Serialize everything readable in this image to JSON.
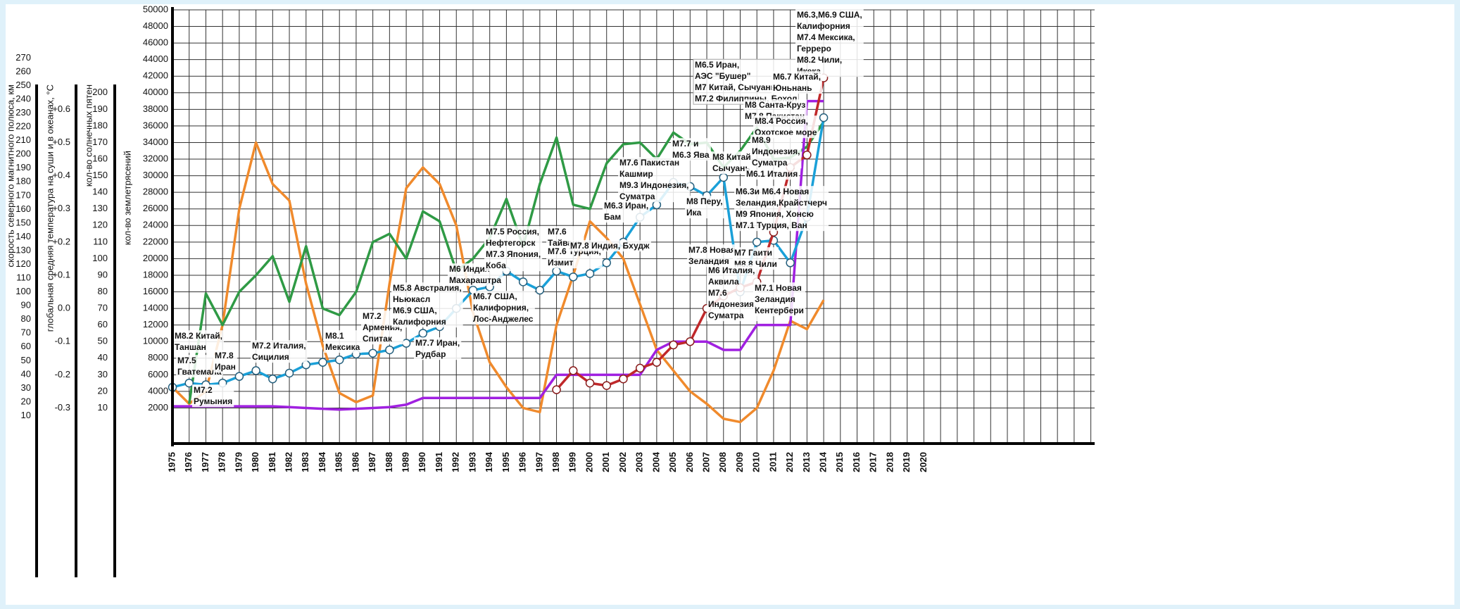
{
  "chart_data": {
    "type": "line",
    "categories": [
      "1975",
      "1976",
      "1977",
      "1978",
      "1979",
      "1980",
      "1981",
      "1982",
      "1983",
      "1984",
      "1985",
      "1986",
      "1987",
      "1988",
      "1989",
      "1990",
      "1991",
      "1992",
      "1993",
      "1994",
      "1995",
      "1996",
      "1997",
      "1998",
      "1999",
      "2000",
      "2001",
      "2002",
      "2003",
      "2004",
      "2005",
      "2006",
      "2007",
      "2008",
      "2009",
      "2010",
      "2011",
      "2012",
      "2013",
      "2014",
      "2015",
      "2016",
      "2017",
      "2018",
      "2019",
      "2020"
    ],
    "category_colors": [
      "#d62020",
      "#2a9a3a",
      "#111111",
      "#d62020",
      "#2a9a3a",
      "#2a9a3a",
      "#111111",
      "#111111",
      "#d62020",
      "#2a9a3a",
      "#111111",
      "#111111",
      "#d62020",
      "#2a9a3a",
      "#111111",
      "#d62020",
      "#d62020",
      "#2a9a3a",
      "#111111",
      "#111111",
      "#d62020",
      "#2a9a3a",
      "#111111",
      "#111111",
      "#d62020",
      "#2a9a3a",
      "#111111",
      "#111111",
      "#d62020",
      "#2a9a3a",
      "#111111",
      "#111111",
      "#d62020",
      "#2a9a3a",
      "#111111",
      "#111111",
      "#d62020",
      "#2a9a3a",
      "#111111",
      "#111111",
      "#d62020",
      "#2a9a3a",
      "#111111",
      "#111111",
      "#d62020",
      "#2a9a3a"
    ],
    "ylabel": "кол-во землетрясений",
    "ylim": [
      0,
      50000
    ],
    "yticks": [
      2000,
      4000,
      6000,
      8000,
      10000,
      12000,
      14000,
      16000,
      18000,
      20000,
      22000,
      24000,
      26000,
      28000,
      30000,
      32000,
      34000,
      36000,
      38000,
      40000,
      42000,
      44000,
      46000,
      48000,
      50000
    ],
    "grid": true,
    "axes": [
      {
        "label": "кол-во солнечных пятен",
        "lim": [
          0,
          250
        ],
        "ticks": [
          10,
          20,
          30,
          40,
          50,
          60,
          70,
          80,
          90,
          100,
          110,
          120,
          130,
          140,
          150,
          160,
          170,
          180,
          190,
          200
        ]
      },
      {
        "label": "глобальная средняя температура на суши и в океанах, °С",
        "lim": [
          -0.35,
          0.9
        ],
        "ticks": [
          {
            "value": -0.3,
            "label": "-0.3"
          },
          {
            "value": -0.2,
            "label": "-0.2"
          },
          {
            "value": -0.1,
            "label": "-0.1"
          },
          {
            "value": 0,
            "label": "0.0"
          },
          {
            "value": 0.1,
            "label": "+0.1"
          },
          {
            "value": 0.2,
            "label": "+0.2"
          },
          {
            "value": 0.3,
            "label": "+0.3"
          },
          {
            "value": 0.4,
            "label": "+0.4"
          },
          {
            "value": 0.5,
            "label": "+0.5"
          },
          {
            "value": 0.6,
            "label": "+0.6"
          }
        ]
      },
      {
        "label": "скорость северного магнитного полюса, км",
        "lim": [
          3.6,
          305
        ],
        "ticks": [
          10,
          20,
          30,
          40,
          50,
          60,
          70,
          80,
          90,
          100,
          110,
          120,
          130,
          140,
          150,
          160,
          170,
          180,
          190,
          200,
          210,
          220,
          230,
          240,
          250,
          260,
          270
        ]
      }
    ],
    "series": [
      {
        "color": "#f08a2c",
        "values": [
          4500,
          2500,
          4000,
          12000,
          26000,
          34000,
          29000,
          27000,
          17000,
          9500,
          3800,
          2700,
          3500,
          17000,
          28500,
          31000,
          29000,
          24000,
          13500,
          7500,
          4500,
          2000,
          1500,
          12000,
          18000,
          24500,
          22500,
          20000,
          14500,
          9000,
          6500,
          4000,
          2500,
          700,
          300,
          2000,
          6500,
          12500,
          11500,
          15000,
          null,
          null,
          null,
          null,
          null,
          null
        ]
      },
      {
        "color": "#2f9a45",
        "values": [
          null,
          2500,
          15800,
          12000,
          16000,
          18000,
          20300,
          14800,
          21500,
          14000,
          13200,
          16000,
          22000,
          23000,
          20000,
          25700,
          24500,
          18500,
          20000,
          22500,
          27200,
          21500,
          29000,
          34600,
          26500,
          26000,
          31500,
          33800,
          34000,
          32000,
          35200,
          33800,
          34000,
          31000,
          33000,
          35800,
          32000,
          32200,
          33500,
          36500,
          null,
          null,
          null,
          null,
          null,
          null
        ]
      },
      {
        "color": "#a020e0",
        "values": [
          2200,
          2200,
          2200,
          2200,
          2200,
          2200,
          2200,
          2100,
          2000,
          1900,
          1800,
          1900,
          2000,
          2100,
          2400,
          3200,
          3200,
          3200,
          3200,
          3200,
          3200,
          3200,
          3200,
          6000,
          6000,
          6000,
          6000,
          6000,
          6000,
          9000,
          10000,
          10000,
          10000,
          9000,
          9000,
          12000,
          12000,
          12000,
          39000,
          39000,
          null,
          null,
          null,
          null,
          null,
          null
        ]
      },
      {
        "color": "#1aa0d8",
        "values": [
          4500,
          5000,
          4800,
          5000,
          5800,
          6500,
          5500,
          6200,
          7200,
          7500,
          7800,
          8500,
          8600,
          9000,
          9800,
          11000,
          11800,
          14000,
          16200,
          16600,
          18500,
          17200,
          16200,
          18500,
          17800,
          18200,
          19500,
          22000,
          25000,
          26500,
          29200,
          28700,
          27600,
          29800,
          16000,
          22000,
          22200,
          19500,
          25000,
          37000,
          null,
          null,
          null,
          null,
          null,
          null
        ]
      },
      {
        "color": "#c0282a",
        "values": [
          null,
          null,
          null,
          null,
          null,
          null,
          null,
          null,
          null,
          null,
          null,
          null,
          null,
          null,
          null,
          null,
          null,
          null,
          null,
          null,
          null,
          null,
          null,
          4200,
          6500,
          5000,
          4700,
          5500,
          6800,
          7500,
          9600,
          10000,
          14000,
          15500,
          16500,
          17200,
          23200,
          31000,
          32500,
          41800,
          null,
          null,
          null,
          null,
          null,
          null
        ]
      }
    ],
    "annotations": [
      {
        "lines": [
          "М8.2 Китай,",
          "Таншан"
        ]
      },
      {
        "lines": [
          "М7.5",
          "Гватемала"
        ]
      },
      {
        "lines": [
          "М7.2",
          "Румыния"
        ]
      },
      {
        "lines": [
          "М7.8",
          "Иран"
        ]
      },
      {
        "lines": [
          "М7.2 Италия,",
          "Сицилия"
        ]
      },
      {
        "lines": [
          "М8.1",
          "Мексика"
        ]
      },
      {
        "lines": [
          "М7.2",
          "Армения,",
          "Спитак"
        ]
      },
      {
        "lines": [
          "М5.8 Австралия,",
          "Ньюкасл",
          "М6.9 США,",
          "Калифорния"
        ]
      },
      {
        "lines": [
          "М7.7  Иран,",
          "Рудбар"
        ]
      },
      {
        "lines": [
          "М6 Индия",
          "Махараштра"
        ]
      },
      {
        "lines": [
          "М7.5 Россия,",
          "Нефтегорск",
          "М7.3 Япония,",
          "Коба"
        ]
      },
      {
        "lines": [
          "М6.7 США,",
          "Калифорния,",
          "Лос-Анджелес"
        ]
      },
      {
        "lines": [
          "М7.6",
          "Тайвань"
        ]
      },
      {
        "lines": [
          "М7.6 Турция,",
          "Измит"
        ]
      },
      {
        "lines": [
          "М7.8 Индия, Бхудж"
        ]
      },
      {
        "lines": [
          "М6.3 Иран,",
          "Бам"
        ]
      },
      {
        "lines": [
          "М7.6 Пакистан",
          "Кашмир",
          "М9.3 Индонезия,",
          "Суматра"
        ]
      },
      {
        "lines": [
          "М7.7 и",
          "М6.3 Ява"
        ]
      },
      {
        "lines": [
          "М8 Китай,",
          "Сычуань"
        ]
      },
      {
        "lines": [
          "М8 Перу,",
          "Ика"
        ]
      },
      {
        "lines": [
          "М6.5 Иран,",
          "АЭС \"Бушер\"",
          "М7 Китай, Сычуань",
          "М7.2 Филиппины, Бохол"
        ]
      },
      {
        "lines": [
          "М6.3,М6.9 США,",
          "Калифорния",
          "М7.4 Мексика,",
          "Герреро",
          "М8.2 Чили,",
          "Икека"
        ]
      },
      {
        "lines": [
          "М6.7 Китай,",
          "Юньнань"
        ]
      },
      {
        "lines": [
          "М8 Санта-Круз",
          "М7.8 Пакистан"
        ]
      },
      {
        "lines": [
          "М8.4 Россия,",
          "Охотское море"
        ]
      },
      {
        "lines": [
          "М8.9",
          "Индонезия,",
          "Суматра"
        ]
      },
      {
        "lines": [
          "М6.1 Италия"
        ]
      },
      {
        "lines": [
          "М6.3и М6.4 Новая",
          "Зеландия,Крайстчерч",
          "М9 Япония, Хонсю",
          "М7.1 Турция, Ван"
        ]
      },
      {
        "lines": [
          "М7.8 Новая",
          "Зеландия"
        ]
      },
      {
        "lines": [
          "М7 Гаити",
          "М8.8 Чили"
        ]
      },
      {
        "lines": [
          "М6 Италия,",
          "Аквила",
          "М7.6",
          "Индонезия,",
          "Суматра"
        ]
      },
      {
        "lines": [
          "М7.1 Новая",
          "Зеландия",
          "Кентербери"
        ]
      }
    ]
  }
}
